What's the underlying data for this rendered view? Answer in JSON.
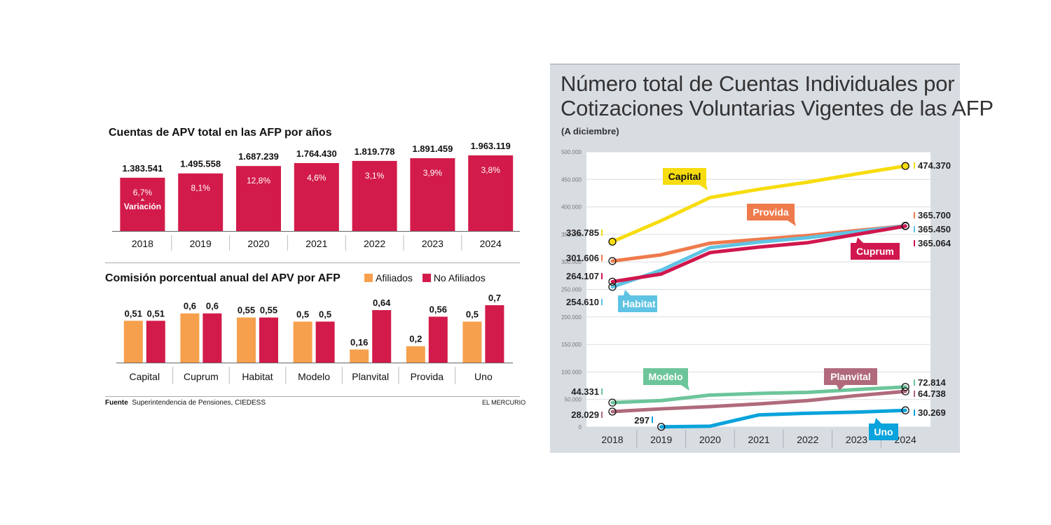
{
  "left_panel": {
    "chart1_title": "Cuentas de APV total en las AFP por años",
    "chart2_title": "Comisión porcentual anual del APV por AFP",
    "variation_label": "Variación",
    "source_label": "Fuente",
    "source_text": "Superintendencia de Pensiones, CIEDESS",
    "publisher": "EL MERCURIO"
  },
  "right_panel": {
    "title_line1": "Número total de Cuentas Individuales por",
    "title_line2": "Cotizaciones Voluntarias Vigentes de las AFP",
    "subtitle": "(A diciembre)"
  },
  "colors": {
    "bar_red": "#d21b4a",
    "bar_orange": "#f6a04d",
    "Capital": "#f7dc0f",
    "Provida": "#ef7a4c",
    "Habitat": "#5fc3e4",
    "Cuprum": "#d0174e",
    "Modelo": "#6cc59a",
    "Planvital": "#b06a7c",
    "Uno": "#0aa3dc"
  },
  "chart_data": [
    {
      "type": "bar",
      "title": "Cuentas de APV total en las AFP por años",
      "categories": [
        "2018",
        "2019",
        "2020",
        "2021",
        "2022",
        "2023",
        "2024"
      ],
      "values": [
        1383541,
        1495558,
        1687239,
        1764430,
        1819778,
        1891459,
        1963119
      ],
      "value_labels": [
        "1.383.541",
        "1.495.558",
        "1.687.239",
        "1.764.430",
        "1.819.778",
        "1.891.459",
        "1.963.119"
      ],
      "variation_labels": [
        "6,7%",
        "8,1%",
        "12,8%",
        "4,6%",
        "3,1%",
        "3,9%",
        "3,8%"
      ]
    },
    {
      "type": "bar",
      "title": "Comisión porcentual anual del APV por AFP",
      "categories": [
        "Capital",
        "Cuprum",
        "Habitat",
        "Modelo",
        "Planvital",
        "Provida",
        "Uno"
      ],
      "series": [
        {
          "name": "Afiliados",
          "values": [
            0.51,
            0.6,
            0.55,
            0.5,
            0.16,
            0.2,
            0.5
          ],
          "labels": [
            "0,51",
            "0,6",
            "0,55",
            "0,5",
            "0,16",
            "0,2",
            "0,5"
          ]
        },
        {
          "name": "No Afiliados",
          "values": [
            0.51,
            0.6,
            0.55,
            0.5,
            0.64,
            0.56,
            0.7
          ],
          "labels": [
            "0,51",
            "0,6",
            "0,55",
            "0,5",
            "0,64",
            "0,56",
            "0,7"
          ]
        }
      ],
      "legend_position": "top-right"
    },
    {
      "type": "line",
      "title": "Número total de Cuentas Individuales por Cotizaciones Voluntarias Vigentes de las AFP",
      "subtitle": "(A diciembre)",
      "x": [
        "2018",
        "2019",
        "2020",
        "2021",
        "2022",
        "2023",
        "2024"
      ],
      "ylim": [
        0,
        500000
      ],
      "yticks": [
        0,
        50000,
        100000,
        150000,
        200000,
        250000,
        300000,
        350000,
        400000,
        450000,
        500000
      ],
      "ytick_labels": [
        "0",
        "50.000",
        "100.000",
        "150.000",
        "200.000",
        "250.000",
        "300.000",
        "350.000",
        "400.000",
        "450.000",
        "500.000"
      ],
      "grid": true,
      "series": [
        {
          "name": "Capital",
          "values": [
            336785,
            375000,
            417000,
            432000,
            445000,
            460000,
            474370
          ],
          "start_label": "336.785",
          "end_label": "474.370"
        },
        {
          "name": "Provida",
          "values": [
            301606,
            313000,
            334000,
            341000,
            348000,
            357000,
            365700
          ],
          "start_label": "301.606",
          "end_label": "365.700"
        },
        {
          "name": "Habitat",
          "values": [
            254610,
            285000,
            326000,
            336000,
            344000,
            355000,
            365450
          ],
          "start_label": "254.610",
          "end_label": "365.450"
        },
        {
          "name": "Cuprum",
          "values": [
            264107,
            278000,
            317000,
            327000,
            335000,
            350000,
            365064
          ],
          "start_label": "264.107",
          "end_label": "365.064"
        },
        {
          "name": "Modelo",
          "values": [
            44331,
            48000,
            58000,
            61000,
            63000,
            68000,
            72814
          ],
          "start_label": "44.331",
          "end_label": "72.814"
        },
        {
          "name": "Planvital",
          "values": [
            28029,
            33000,
            37000,
            42000,
            48000,
            57000,
            64738
          ],
          "start_label": "28.029",
          "end_label": "64.738"
        },
        {
          "name": "Uno",
          "values": [
            null,
            297,
            1500,
            22000,
            25000,
            27000,
            30269
          ],
          "start_label": "297",
          "end_label": "30.269"
        }
      ]
    }
  ]
}
